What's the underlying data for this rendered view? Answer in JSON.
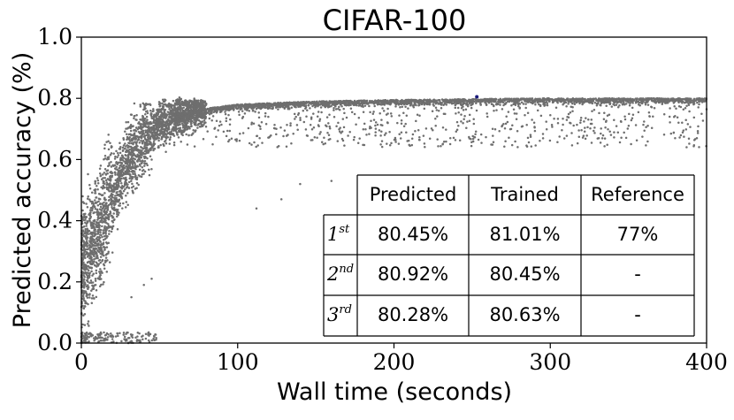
{
  "chart_data": {
    "type": "scatter",
    "title": "CIFAR-100",
    "xlabel": "Wall time (seconds)",
    "ylabel": "Predicted accuracy (%)",
    "xlim": [
      0,
      400
    ],
    "ylim": [
      0.0,
      1.0
    ],
    "xticks": [
      "0",
      "100",
      "200",
      "300",
      "400"
    ],
    "yticks": [
      "0.0",
      "0.2",
      "0.4",
      "0.6",
      "0.8",
      "1.0"
    ],
    "grid": false,
    "point_color": "#6e6e6e",
    "highlight_point": {
      "x": 253,
      "y": 0.805,
      "color": "#1a1a7a"
    },
    "series": [
      {
        "points_description": "thousands of configurations; dense band rising from ~0.05-0.5 near x=0 to ~0.7-0.8 by x=70, saturating at ~0.78-0.80 up to x=400, with sparse scatter down to ~0.62-0.75 and a cluster near 0.0-0.03 for x<50",
        "trend": [
          [
            0,
            0.25
          ],
          [
            10,
            0.35
          ],
          [
            20,
            0.48
          ],
          [
            30,
            0.6
          ],
          [
            40,
            0.67
          ],
          [
            50,
            0.72
          ],
          [
            70,
            0.76
          ],
          [
            100,
            0.78
          ],
          [
            150,
            0.79
          ],
          [
            200,
            0.795
          ],
          [
            300,
            0.8
          ],
          [
            400,
            0.8
          ]
        ]
      }
    ],
    "table": {
      "headers": [
        "Predicted",
        "Trained",
        "Reference"
      ],
      "rows": [
        {
          "rank": "1",
          "sup": "st",
          "values": [
            "80.45%",
            "81.01%",
            "77%"
          ]
        },
        {
          "rank": "2",
          "sup": "nd",
          "values": [
            "80.92%",
            "80.45%",
            "-"
          ]
        },
        {
          "rank": "3",
          "sup": "rd",
          "values": [
            "80.28%",
            "80.63%",
            "-"
          ]
        }
      ],
      "placement": "bottom-right"
    }
  }
}
